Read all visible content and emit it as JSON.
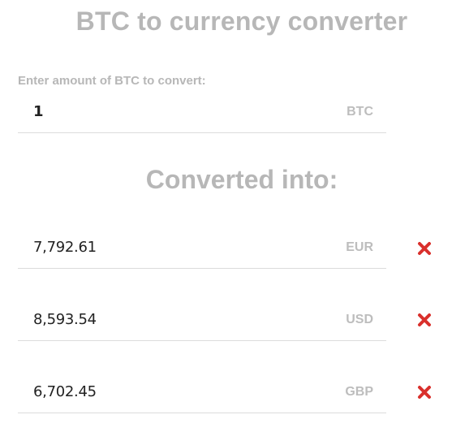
{
  "header": {
    "title": "BTC to currency converter"
  },
  "input": {
    "label": "Enter amount of BTC to convert:",
    "value": "1",
    "currency": "BTC"
  },
  "converted": {
    "heading": "Converted into:",
    "rows": [
      {
        "value": "7,792.61",
        "currency": "EUR"
      },
      {
        "value": "8,593.54",
        "currency": "USD"
      },
      {
        "value": "6,702.45",
        "currency": "GBP"
      }
    ]
  },
  "colors": {
    "muted": "#b7b7b7",
    "remove": "#d9302c"
  },
  "icons": {
    "remove": "close-icon"
  }
}
